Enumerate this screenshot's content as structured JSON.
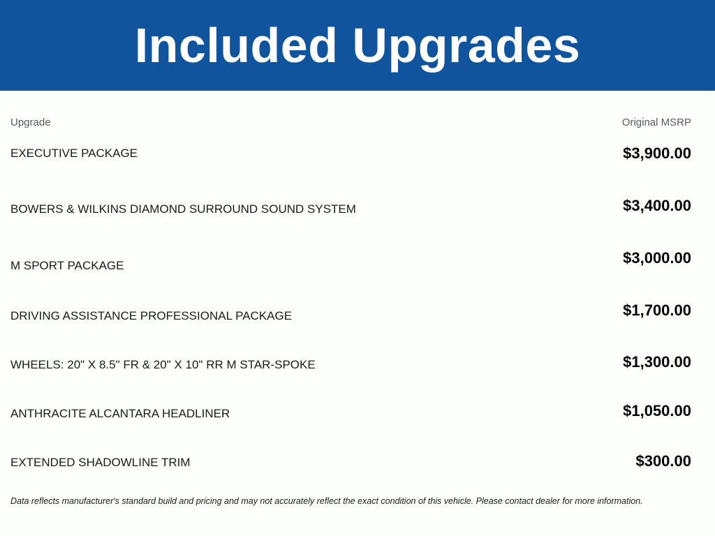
{
  "title": "Included Upgrades",
  "colors": {
    "banner_blue": "#10549d",
    "title_text": "#ffffff",
    "column_header_gray": "#58595b",
    "body_text": "#1a1a1a",
    "price_text": "#000000"
  },
  "table": {
    "columns": [
      {
        "label": "Upgrade"
      },
      {
        "label": "Original MSRP"
      }
    ],
    "rows": [
      {
        "upgrade": "EXECUTIVE PACKAGE",
        "msrp": "$3,900.00"
      },
      {
        "upgrade": "BOWERS & WILKINS DIAMOND SURROUND SOUND SYSTEM",
        "msrp": "$3,400.00"
      },
      {
        "upgrade": "M SPORT PACKAGE",
        "msrp": "$3,000.00"
      },
      {
        "upgrade": "DRIVING ASSISTANCE PROFESSIONAL PACKAGE",
        "msrp": "$1,700.00"
      },
      {
        "upgrade": "WHEELS: 20\" X 8.5\" FR & 20\" X 10\" RR M STAR-SPOKE",
        "msrp": "$1,300.00"
      },
      {
        "upgrade": "ANTHRACITE ALCANTARA HEADLINER",
        "msrp": "$1,050.00"
      },
      {
        "upgrade": "EXTENDED SHADOWLINE TRIM",
        "msrp": "$300.00"
      }
    ]
  },
  "disclaimer": "Data reflects manufacturer's standard build and pricing and may not accurately reflect the exact condition of this vehicle. Please contact dealer for more information."
}
